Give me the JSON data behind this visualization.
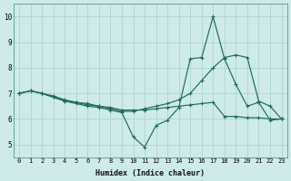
{
  "xlabel": "Humidex (Indice chaleur)",
  "bg_color": "#ceeaea",
  "line_color": "#1e6b5e",
  "grid_color": "#aed4d0",
  "xlim": [
    -0.5,
    23.5
  ],
  "ylim": [
    4.5,
    10.5
  ],
  "xticks": [
    0,
    1,
    2,
    3,
    4,
    5,
    6,
    7,
    8,
    9,
    10,
    11,
    12,
    13,
    14,
    15,
    16,
    17,
    18,
    19,
    20,
    21,
    22,
    23
  ],
  "yticks": [
    5,
    6,
    7,
    8,
    9,
    10
  ],
  "line1_x": [
    0,
    1,
    2,
    3,
    4,
    5,
    6,
    7,
    8,
    9,
    10,
    11,
    12,
    13,
    14,
    15,
    16,
    17,
    18,
    19,
    20,
    21,
    22,
    23
  ],
  "line1_y": [
    7.0,
    7.1,
    7.0,
    6.9,
    6.75,
    6.65,
    6.55,
    6.5,
    6.45,
    6.35,
    6.35,
    6.35,
    6.4,
    6.45,
    6.5,
    6.55,
    6.6,
    6.65,
    6.1,
    6.1,
    6.05,
    6.05,
    6.0,
    6.0
  ],
  "line2_x": [
    0,
    1,
    2,
    3,
    4,
    5,
    6,
    7,
    8,
    9,
    10,
    11,
    12,
    13,
    14,
    15,
    16,
    17,
    18,
    19,
    20,
    21,
    22,
    23
  ],
  "line2_y": [
    7.0,
    7.1,
    7.0,
    6.85,
    6.7,
    6.6,
    6.5,
    6.45,
    6.35,
    6.25,
    5.3,
    4.9,
    5.75,
    5.95,
    6.45,
    8.35,
    8.4,
    10.0,
    8.35,
    7.35,
    6.5,
    6.65,
    5.95,
    6.0
  ],
  "line3_x": [
    0,
    1,
    2,
    3,
    4,
    5,
    6,
    7,
    8,
    9,
    10,
    11,
    12,
    13,
    14,
    15,
    16,
    17,
    18,
    19,
    20,
    21,
    22,
    23
  ],
  "line3_y": [
    7.0,
    7.1,
    7.0,
    6.85,
    6.7,
    6.65,
    6.6,
    6.5,
    6.4,
    6.3,
    6.3,
    6.4,
    6.5,
    6.6,
    6.75,
    7.0,
    7.5,
    8.0,
    8.4,
    8.5,
    8.4,
    6.7,
    6.5,
    6.0
  ]
}
